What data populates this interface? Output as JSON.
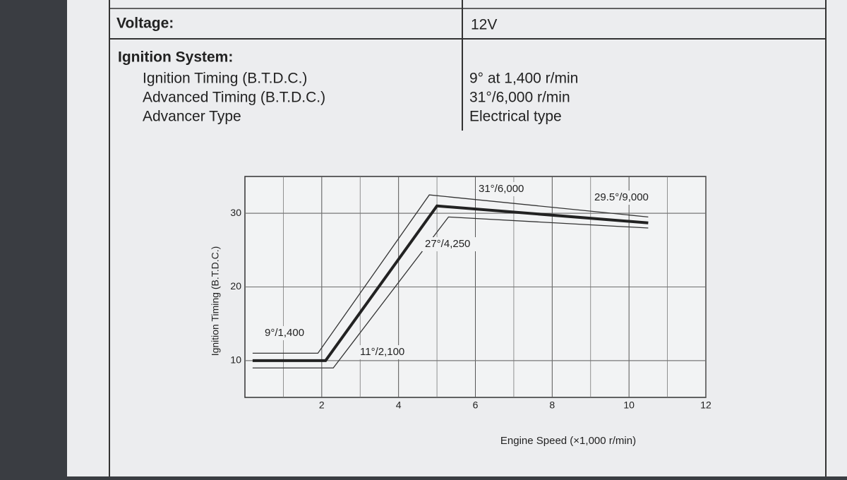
{
  "spec": {
    "rows": [
      [
        "Voltage:",
        "12V"
      ]
    ],
    "section_title": "Ignition System:",
    "items": [
      [
        "Ignition Timing (B.T.D.C.)",
        "9° at 1,400 r/min"
      ],
      [
        "Advanced Timing (B.T.D.C.)",
        "31°/6,000 r/min"
      ],
      [
        "Advancer Type",
        "Electrical type"
      ]
    ]
  },
  "chart_data": {
    "type": "line",
    "y_label": "Ignition Timing (B.T.D.C.)",
    "x_label": "Engine Speed (×1,000 r/min)",
    "xlim": [
      0,
      12
    ],
    "xticks": [
      2,
      4,
      6,
      8,
      10,
      12
    ],
    "ylim": [
      5,
      35
    ],
    "yticks": [
      10,
      20,
      30
    ],
    "grid": true,
    "series": [
      {
        "color": "#222222",
        "x": [
          0.2,
          2.1,
          5.0,
          10.5
        ],
        "values": [
          10,
          10,
          31,
          28.7
        ]
      },
      {
        "color": "#333333",
        "x": [
          0.2,
          1.9,
          4.8,
          10.5
        ],
        "values": [
          11,
          11,
          32.5,
          29.5
        ]
      },
      {
        "color": "#333333",
        "x": [
          0.2,
          2.3,
          5.3,
          10.5
        ],
        "values": [
          9,
          9,
          29.5,
          28
        ]
      }
    ],
    "annotations": [
      "9°/1,400",
      "11°/2,100",
      "27°/4,250",
      "31°/6,000",
      "29.5°/9,000"
    ]
  }
}
